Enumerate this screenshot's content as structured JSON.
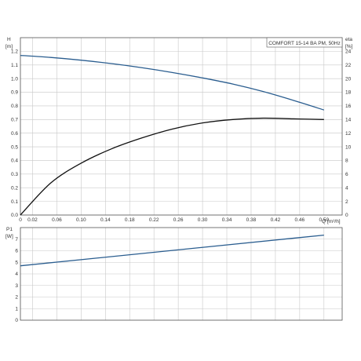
{
  "chart_data": [
    {
      "type": "line",
      "title": "COMFORT 15-14 BA PM, 50Hz",
      "ylabel": "H",
      "yunit": "[m]",
      "y2label": "eta",
      "y2unit": "[%]",
      "xlabel": "Q",
      "xunit": "[m³/h]",
      "xlim": [
        0,
        0.53
      ],
      "ylim": [
        0,
        1.3
      ],
      "y2lim": [
        0,
        26
      ],
      "x_ticks": [
        "0",
        "0.02",
        "0.06",
        "0.10",
        "0.14",
        "0.18",
        "0.22",
        "0.26",
        "0.30",
        "0.34",
        "0.38",
        "0.42",
        "0.46",
        "0.50"
      ],
      "y_ticks": [
        "0.0",
        "0.1",
        "0.2",
        "0.3",
        "0.4",
        "0.5",
        "0.6",
        "0.7",
        "0.8",
        "0.9",
        "1.0",
        "1.1",
        "1.2"
      ],
      "y2_ticks": [
        "0",
        "2",
        "4",
        "6",
        "8",
        "10",
        "12",
        "14",
        "16",
        "18",
        "20",
        "22",
        "24"
      ],
      "grid": true,
      "series": [
        {
          "axis": "left",
          "color": "#2a5d8f",
          "x": [
            0,
            0.05,
            0.1,
            0.15,
            0.2,
            0.25,
            0.3,
            0.35,
            0.4,
            0.45,
            0.5
          ],
          "y": [
            1.17,
            1.155,
            1.135,
            1.11,
            1.08,
            1.045,
            1.005,
            0.96,
            0.905,
            0.84,
            0.77
          ]
        },
        {
          "axis": "right",
          "color": "#111111",
          "x": [
            0,
            0.05,
            0.1,
            0.15,
            0.2,
            0.25,
            0.3,
            0.35,
            0.4,
            0.45,
            0.5
          ],
          "y": [
            0,
            4.7,
            7.6,
            9.7,
            11.3,
            12.6,
            13.5,
            14.0,
            14.2,
            14.1,
            14.0
          ]
        }
      ]
    },
    {
      "type": "line",
      "ylabel": "P1",
      "yunit": "[W]",
      "xlim": [
        0,
        0.53
      ],
      "ylim": [
        0,
        8
      ],
      "y_ticks": [
        "0",
        "1",
        "2",
        "3",
        "4",
        "5",
        "6",
        "7"
      ],
      "grid": true,
      "series": [
        {
          "axis": "left",
          "color": "#2a5d8f",
          "x": [
            0,
            0.5
          ],
          "y": [
            4.7,
            7.35
          ]
        }
      ]
    }
  ]
}
